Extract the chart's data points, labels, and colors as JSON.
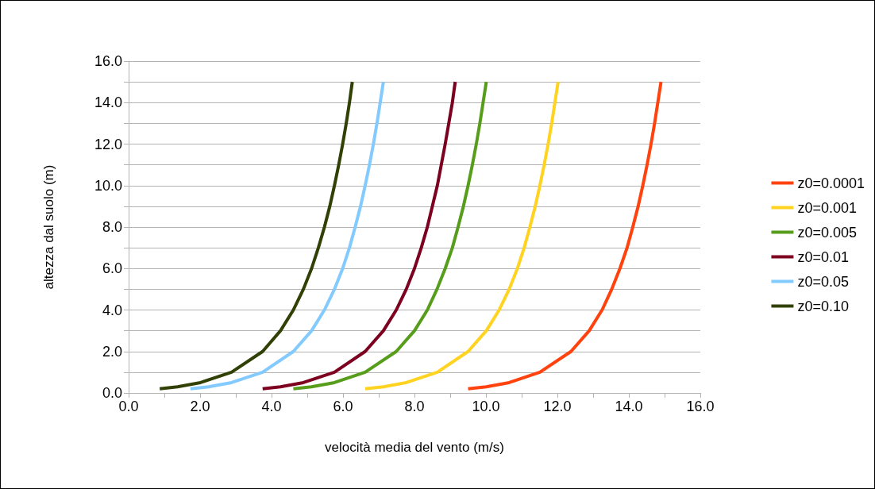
{
  "chart_data": {
    "type": "line",
    "xlabel": "velocità media del vento (m/s)",
    "ylabel": "altezza dal suolo (m)",
    "xlim": [
      0,
      16
    ],
    "ylim": [
      0,
      16
    ],
    "xticks": [
      {
        "value": 0,
        "label": "0.0"
      },
      {
        "value": 1,
        "label": null
      },
      {
        "value": 2,
        "label": "2.0"
      },
      {
        "value": 3,
        "label": null
      },
      {
        "value": 4,
        "label": "4.0"
      },
      {
        "value": 5,
        "label": null
      },
      {
        "value": 6,
        "label": "6.0"
      },
      {
        "value": 7,
        "label": null
      },
      {
        "value": 8,
        "label": "8.0"
      },
      {
        "value": 9,
        "label": null
      },
      {
        "value": 10,
        "label": "10.0"
      },
      {
        "value": 11,
        "label": null
      },
      {
        "value": 12,
        "label": "12.0"
      },
      {
        "value": 13,
        "label": null
      },
      {
        "value": 14,
        "label": "14.0"
      },
      {
        "value": 15,
        "label": null
      },
      {
        "value": 16,
        "label": "16.0"
      }
    ],
    "yticks": [
      {
        "value": 0,
        "label": "0.0"
      },
      {
        "value": 1,
        "label": null
      },
      {
        "value": 2,
        "label": "2.0"
      },
      {
        "value": 3,
        "label": null
      },
      {
        "value": 4,
        "label": "4.0"
      },
      {
        "value": 5,
        "label": null
      },
      {
        "value": 6,
        "label": "6.0"
      },
      {
        "value": 7,
        "label": null
      },
      {
        "value": 8,
        "label": "8.0"
      },
      {
        "value": 9,
        "label": null
      },
      {
        "value": 10,
        "label": "10.0"
      },
      {
        "value": 11,
        "label": null
      },
      {
        "value": 12,
        "label": "12.0"
      },
      {
        "value": 13,
        "label": null
      },
      {
        "value": 14,
        "label": "14.0"
      },
      {
        "value": 15,
        "label": null
      },
      {
        "value": 16,
        "label": "16.0"
      }
    ],
    "grid": "y",
    "legend": "right",
    "marker": "none",
    "line_style": "solid",
    "series": [
      {
        "name": "z0=0.0001",
        "color": "#ff420e",
        "x": [
          9.5,
          10.01,
          10.65,
          11.51,
          12.38,
          12.89,
          13.25,
          13.52,
          13.75,
          13.95,
          14.11,
          14.26,
          14.39,
          14.51,
          14.62,
          14.72,
          14.81,
          14.9
        ],
        "values": [
          0.2,
          0.3,
          0.5,
          1,
          2,
          3,
          4,
          5,
          6,
          7,
          8,
          9,
          10,
          11,
          12,
          13,
          14,
          15
        ]
      },
      {
        "name": "z0=0.001",
        "color": "#ffd320",
        "x": [
          6.62,
          7.13,
          7.77,
          8.64,
          9.5,
          10.01,
          10.37,
          10.65,
          10.88,
          11.07,
          11.23,
          11.38,
          11.51,
          11.63,
          11.74,
          11.84,
          11.93,
          12.02
        ],
        "values": [
          0.2,
          0.3,
          0.5,
          1,
          2,
          3,
          4,
          5,
          6,
          7,
          8,
          9,
          10,
          11,
          12,
          13,
          14,
          15
        ]
      },
      {
        "name": "z0=0.005",
        "color": "#579d1c",
        "x": [
          4.61,
          5.12,
          5.76,
          6.62,
          7.49,
          8.0,
          8.36,
          8.63,
          8.86,
          9.06,
          9.22,
          9.37,
          9.5,
          9.62,
          9.73,
          9.83,
          9.92,
          10.01
        ],
        "values": [
          0.2,
          0.3,
          0.5,
          1,
          2,
          3,
          4,
          5,
          6,
          7,
          8,
          9,
          10,
          11,
          12,
          13,
          14,
          15
        ]
      },
      {
        "name": "z0=0.01",
        "color": "#7e0021",
        "x": [
          3.75,
          4.25,
          4.89,
          5.76,
          6.62,
          7.13,
          7.49,
          7.77,
          8.0,
          8.19,
          8.36,
          8.5,
          8.64,
          8.75,
          8.86,
          8.96,
          9.06,
          9.14
        ],
        "values": [
          0.2,
          0.3,
          0.5,
          1,
          2,
          3,
          4,
          5,
          6,
          7,
          8,
          9,
          10,
          11,
          12,
          13,
          14,
          15
        ]
      },
      {
        "name": "z0=0.05",
        "color": "#83caff",
        "x": [
          1.73,
          2.24,
          2.88,
          3.75,
          4.61,
          5.12,
          5.48,
          5.76,
          5.99,
          6.18,
          6.34,
          6.49,
          6.62,
          6.74,
          6.85,
          6.95,
          7.04,
          7.13
        ],
        "values": [
          0.2,
          0.3,
          0.5,
          1,
          2,
          3,
          4,
          5,
          6,
          7,
          8,
          9,
          10,
          11,
          12,
          13,
          14,
          15
        ]
      },
      {
        "name": "z0=0.10",
        "color": "#314004",
        "x": [
          0.87,
          1.37,
          2.01,
          2.88,
          3.75,
          4.25,
          4.61,
          4.89,
          5.12,
          5.31,
          5.48,
          5.63,
          5.76,
          5.88,
          5.99,
          6.09,
          6.18,
          6.26
        ],
        "values": [
          0.2,
          0.3,
          0.5,
          1,
          2,
          3,
          4,
          5,
          6,
          7,
          8,
          9,
          10,
          11,
          12,
          13,
          14,
          15
        ]
      }
    ]
  }
}
